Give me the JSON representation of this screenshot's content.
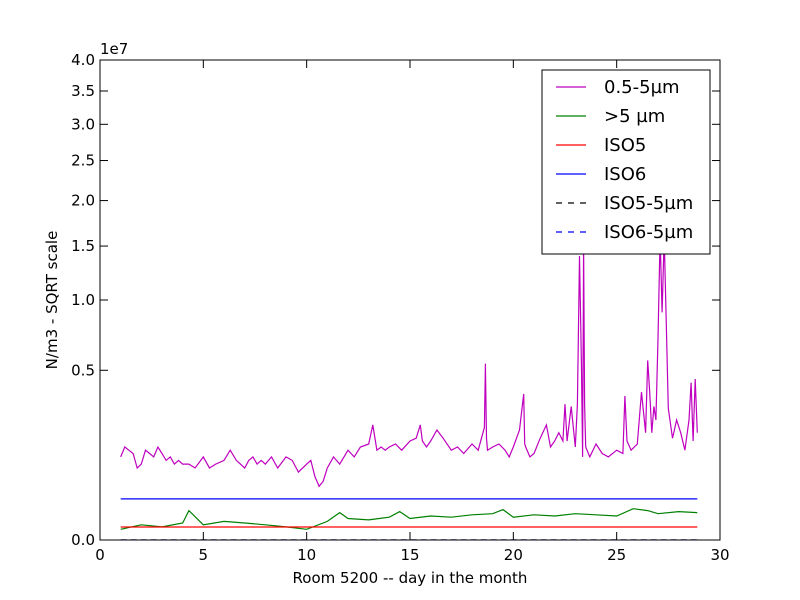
{
  "chart_data": {
    "type": "line",
    "title": "",
    "xlabel": "Room 5200 -- day in the month",
    "ylabel": "N/m3 - SQRT scale",
    "y_scale": "sqrt",
    "y_multiplier_label": "1e7",
    "xlim": [
      0,
      30
    ],
    "ylim": [
      0,
      40000000
    ],
    "x_ticks": [
      0,
      5,
      10,
      15,
      20,
      25,
      30
    ],
    "x_tick_labels": [
      "0",
      "5",
      "10",
      "15",
      "20",
      "25",
      "30"
    ],
    "y_ticks": [
      0,
      5000000,
      10000000,
      15000000,
      20000000,
      25000000,
      30000000,
      35000000,
      40000000
    ],
    "y_tick_labels": [
      "0.0",
      "0.5",
      "1.0",
      "1.5",
      "2.0",
      "2.5",
      "3.0",
      "3.5",
      "4.0"
    ],
    "grid": false,
    "legend_position": "top-right",
    "series": [
      {
        "name": "0.5-5µm",
        "color": "#bf00bf",
        "style": "solid",
        "x": [
          1.0,
          1.2,
          1.4,
          1.6,
          1.8,
          2.0,
          2.2,
          2.4,
          2.6,
          2.8,
          3.0,
          3.2,
          3.4,
          3.6,
          3.8,
          4.0,
          4.3,
          4.6,
          5.0,
          5.3,
          5.6,
          6.0,
          6.3,
          6.6,
          7.0,
          7.2,
          7.4,
          7.6,
          7.8,
          8.0,
          8.3,
          8.6,
          9.0,
          9.3,
          9.6,
          10.0,
          10.2,
          10.4,
          10.6,
          10.8,
          11.0,
          11.3,
          11.6,
          12.0,
          12.3,
          12.6,
          13.0,
          13.2,
          13.4,
          13.6,
          13.8,
          14.0,
          14.3,
          14.6,
          15.0,
          15.3,
          15.5,
          15.6,
          15.8,
          16.0,
          16.3,
          16.6,
          17.0,
          17.3,
          17.6,
          18.0,
          18.3,
          18.6,
          18.65,
          18.7,
          18.75,
          19.0,
          19.3,
          19.6,
          19.8,
          20.0,
          20.3,
          20.5,
          20.55,
          20.6,
          20.8,
          21.0,
          21.3,
          21.6,
          21.8,
          22.0,
          22.2,
          22.4,
          22.5,
          22.6,
          22.8,
          23.0,
          23.1,
          23.2,
          23.3,
          23.35,
          23.4,
          23.45,
          23.5,
          23.7,
          24.0,
          24.3,
          24.6,
          25.0,
          25.3,
          25.4,
          25.5,
          25.7,
          26.0,
          26.2,
          26.4,
          26.5,
          26.6,
          26.7,
          26.8,
          26.9,
          27.0,
          27.1,
          27.2,
          27.3,
          27.5,
          27.7,
          27.9,
          28.1,
          28.3,
          28.5,
          28.6,
          28.7,
          28.8,
          28.9
        ],
        "y": [
          1200000,
          1500000,
          1400000,
          1300000,
          900000,
          1000000,
          1400000,
          1300000,
          1200000,
          1500000,
          1300000,
          1100000,
          1200000,
          1000000,
          1100000,
          1000000,
          1000000,
          900000,
          1200000,
          900000,
          1000000,
          1100000,
          1400000,
          1100000,
          900000,
          1100000,
          1200000,
          1000000,
          1100000,
          1000000,
          1200000,
          900000,
          1200000,
          1100000,
          800000,
          1000000,
          1100000,
          700000,
          500000,
          600000,
          900000,
          1200000,
          1000000,
          1400000,
          1200000,
          1500000,
          1600000,
          2300000,
          1400000,
          1500000,
          1400000,
          1500000,
          1600000,
          1400000,
          1700000,
          1800000,
          2300000,
          1700000,
          1500000,
          1700000,
          2100000,
          1800000,
          1400000,
          1500000,
          1300000,
          1600000,
          1400000,
          2200000,
          5400000,
          1800000,
          1400000,
          1500000,
          1600000,
          1400000,
          1200000,
          1500000,
          2100000,
          3700000,
          1600000,
          1500000,
          1200000,
          1300000,
          1800000,
          2300000,
          1500000,
          1700000,
          2000000,
          1700000,
          3200000,
          1700000,
          3100000,
          1500000,
          3200000,
          14000000,
          5100000,
          1200000,
          15000000,
          3200000,
          1500000,
          1200000,
          1600000,
          1300000,
          1200000,
          1400000,
          1300000,
          3600000,
          1700000,
          1400000,
          1600000,
          3800000,
          2000000,
          5600000,
          3800000,
          2000000,
          3100000,
          2500000,
          7000000,
          16000000,
          9000000,
          16000000,
          3000000,
          1800000,
          2500000,
          2000000,
          1400000,
          2500000,
          4300000,
          1700000,
          4500000,
          2000000
        ]
      },
      {
        "name": ">5 µm",
        "color": "#008000",
        "style": "solid",
        "x": [
          1.0,
          2.0,
          3.0,
          4.0,
          4.3,
          5.0,
          6.0,
          7.0,
          8.0,
          9.0,
          10.0,
          11.0,
          11.6,
          12.0,
          13.0,
          14.0,
          14.5,
          15.0,
          16.0,
          17.0,
          18.0,
          19.0,
          19.5,
          20.0,
          21.0,
          22.0,
          23.0,
          24.0,
          25.0,
          25.8,
          26.5,
          27.0,
          28.0,
          28.9
        ],
        "y": [
          20000,
          40000,
          30000,
          50000,
          150000,
          40000,
          60000,
          50000,
          40000,
          30000,
          20000,
          60000,
          130000,
          80000,
          70000,
          90000,
          140000,
          80000,
          100000,
          90000,
          110000,
          120000,
          160000,
          90000,
          110000,
          100000,
          120000,
          110000,
          100000,
          170000,
          150000,
          120000,
          140000,
          130000
        ]
      },
      {
        "name": "ISO5",
        "color": "#ff0000",
        "style": "solid",
        "x": [
          1.0,
          28.9
        ],
        "y": [
          29300,
          29300
        ]
      },
      {
        "name": "ISO6",
        "color": "#0000ff",
        "style": "solid",
        "x": [
          1.0,
          28.9
        ],
        "y": [
          293000,
          293000
        ]
      },
      {
        "name": "ISO5-5µm",
        "color": "#000000",
        "style": "dashed",
        "x": [
          1.0,
          28.9
        ],
        "y": [
          0,
          0
        ]
      },
      {
        "name": "ISO6-5µm",
        "color": "#0000ff",
        "style": "dashed",
        "x": [
          1.0,
          28.9
        ],
        "y": [
          0,
          0
        ]
      }
    ]
  }
}
